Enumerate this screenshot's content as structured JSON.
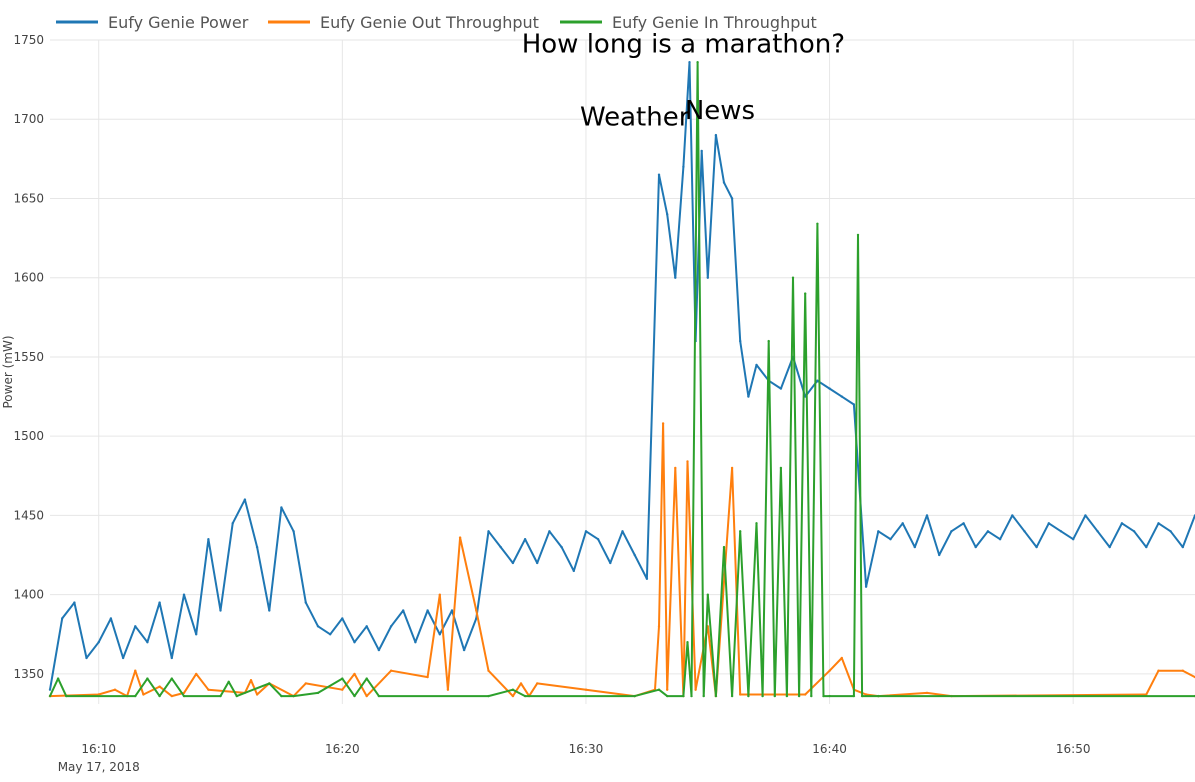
{
  "chart_data": {
    "type": "line",
    "ylabel": "Power (mW)",
    "ylim": [
      1331,
      1750
    ],
    "xlim": [
      "16:08",
      "16:55"
    ],
    "grid": true,
    "legend_position": "top-left",
    "y_ticks": [
      "1350",
      "1400",
      "1450",
      "1500",
      "1550",
      "1600",
      "1650",
      "1700",
      "1750"
    ],
    "x_ticks": [
      "16:10",
      "16:20",
      "16:30",
      "16:40",
      "16:50"
    ],
    "x_date_label": "May 17, 2018",
    "annotations": [
      {
        "text": "How long is a marathon?",
        "x": "16:34",
        "y": 1742
      },
      {
        "text": "Weather",
        "x": "16:32",
        "y": 1696
      },
      {
        "text": "News",
        "x": "16:35:30",
        "y": 1700
      }
    ],
    "series": [
      {
        "name": "Eufy Genie Power",
        "color": "#1f77b4",
        "points": [
          [
            "16:08",
            1340
          ],
          [
            "16:08:30",
            1385
          ],
          [
            "16:09",
            1395
          ],
          [
            "16:09:30",
            1360
          ],
          [
            "16:10",
            1370
          ],
          [
            "16:10:30",
            1385
          ],
          [
            "16:11",
            1360
          ],
          [
            "16:11:30",
            1380
          ],
          [
            "16:12",
            1370
          ],
          [
            "16:12:30",
            1395
          ],
          [
            "16:13",
            1360
          ],
          [
            "16:13:30",
            1400
          ],
          [
            "16:14",
            1375
          ],
          [
            "16:14:30",
            1435
          ],
          [
            "16:15",
            1390
          ],
          [
            "16:15:30",
            1445
          ],
          [
            "16:16",
            1460
          ],
          [
            "16:16:30",
            1430
          ],
          [
            "16:17",
            1390
          ],
          [
            "16:17:30",
            1455
          ],
          [
            "16:18",
            1440
          ],
          [
            "16:18:30",
            1395
          ],
          [
            "16:19",
            1380
          ],
          [
            "16:19:30",
            1375
          ],
          [
            "16:20",
            1385
          ],
          [
            "16:20:30",
            1370
          ],
          [
            "16:21",
            1380
          ],
          [
            "16:21:30",
            1365
          ],
          [
            "16:22",
            1380
          ],
          [
            "16:22:30",
            1390
          ],
          [
            "16:23",
            1370
          ],
          [
            "16:23:30",
            1390
          ],
          [
            "16:24",
            1375
          ],
          [
            "16:24:30",
            1390
          ],
          [
            "16:25",
            1365
          ],
          [
            "16:25:30",
            1385
          ],
          [
            "16:26",
            1440
          ],
          [
            "16:26:30",
            1430
          ],
          [
            "16:27",
            1420
          ],
          [
            "16:27:30",
            1435
          ],
          [
            "16:28",
            1420
          ],
          [
            "16:28:30",
            1440
          ],
          [
            "16:29",
            1430
          ],
          [
            "16:29:30",
            1415
          ],
          [
            "16:30",
            1440
          ],
          [
            "16:30:30",
            1435
          ],
          [
            "16:31",
            1420
          ],
          [
            "16:31:30",
            1440
          ],
          [
            "16:32",
            1425
          ],
          [
            "16:32:30",
            1410
          ],
          [
            "16:33",
            1665
          ],
          [
            "16:33:20",
            1640
          ],
          [
            "16:33:40",
            1600
          ],
          [
            "16:34",
            1670
          ],
          [
            "16:34:15",
            1736
          ],
          [
            "16:34:30",
            1560
          ],
          [
            "16:34:45",
            1680
          ],
          [
            "16:35",
            1600
          ],
          [
            "16:35:20",
            1690
          ],
          [
            "16:35:40",
            1660
          ],
          [
            "16:36",
            1650
          ],
          [
            "16:36:20",
            1560
          ],
          [
            "16:36:40",
            1525
          ],
          [
            "16:37",
            1545
          ],
          [
            "16:37:30",
            1535
          ],
          [
            "16:38",
            1530
          ],
          [
            "16:38:30",
            1550
          ],
          [
            "16:39",
            1525
          ],
          [
            "16:39:30",
            1535
          ],
          [
            "16:40",
            1530
          ],
          [
            "16:40:30",
            1525
          ],
          [
            "16:41",
            1520
          ],
          [
            "16:41:30",
            1405
          ],
          [
            "16:42",
            1440
          ],
          [
            "16:42:30",
            1435
          ],
          [
            "16:43",
            1445
          ],
          [
            "16:43:30",
            1430
          ],
          [
            "16:44",
            1450
          ],
          [
            "16:44:30",
            1425
          ],
          [
            "16:45",
            1440
          ],
          [
            "16:45:30",
            1445
          ],
          [
            "16:46",
            1430
          ],
          [
            "16:46:30",
            1440
          ],
          [
            "16:47",
            1435
          ],
          [
            "16:47:30",
            1450
          ],
          [
            "16:48",
            1440
          ],
          [
            "16:48:30",
            1430
          ],
          [
            "16:49",
            1445
          ],
          [
            "16:49:30",
            1440
          ],
          [
            "16:50",
            1435
          ],
          [
            "16:50:30",
            1450
          ],
          [
            "16:51",
            1440
          ],
          [
            "16:51:30",
            1430
          ],
          [
            "16:52",
            1445
          ],
          [
            "16:52:30",
            1440
          ],
          [
            "16:53",
            1430
          ],
          [
            "16:53:30",
            1445
          ],
          [
            "16:54",
            1440
          ],
          [
            "16:54:30",
            1430
          ],
          [
            "16:55",
            1450
          ]
        ]
      },
      {
        "name": "Eufy Genie Out Throughput",
        "color": "#ff7f0e",
        "points": [
          [
            "16:08",
            1336
          ],
          [
            "16:10",
            1337
          ],
          [
            "16:10:40",
            1340
          ],
          [
            "16:11:10",
            1336
          ],
          [
            "16:11:30",
            1352
          ],
          [
            "16:11:50",
            1337
          ],
          [
            "16:12:30",
            1342
          ],
          [
            "16:13",
            1336
          ],
          [
            "16:13:30",
            1338
          ],
          [
            "16:14",
            1350
          ],
          [
            "16:14:30",
            1340
          ],
          [
            "16:16",
            1338
          ],
          [
            "16:16:15",
            1346
          ],
          [
            "16:16:30",
            1337
          ],
          [
            "16:17",
            1344
          ],
          [
            "16:18",
            1336
          ],
          [
            "16:18:30",
            1344
          ],
          [
            "16:20",
            1340
          ],
          [
            "16:20:30",
            1350
          ],
          [
            "16:21",
            1336
          ],
          [
            "16:22",
            1352
          ],
          [
            "16:23:30",
            1348
          ],
          [
            "16:24",
            1400
          ],
          [
            "16:24:20",
            1340
          ],
          [
            "16:24:50",
            1436
          ],
          [
            "16:25:30",
            1390
          ],
          [
            "16:26",
            1352
          ],
          [
            "16:27",
            1336
          ],
          [
            "16:27:20",
            1344
          ],
          [
            "16:27:40",
            1336
          ],
          [
            "16:28",
            1344
          ],
          [
            "16:30",
            1340
          ],
          [
            "16:32",
            1336
          ],
          [
            "16:32:50",
            1340
          ],
          [
            "16:33",
            1380
          ],
          [
            "16:33:10",
            1508
          ],
          [
            "16:33:20",
            1340
          ],
          [
            "16:33:40",
            1480
          ],
          [
            "16:34",
            1336
          ],
          [
            "16:34:10",
            1484
          ],
          [
            "16:34:30",
            1340
          ],
          [
            "16:35",
            1380
          ],
          [
            "16:35:20",
            1336
          ],
          [
            "16:36",
            1480
          ],
          [
            "16:36:20",
            1337
          ],
          [
            "16:39",
            1337
          ],
          [
            "16:40",
            1352
          ],
          [
            "16:40:30",
            1360
          ],
          [
            "16:41",
            1340
          ],
          [
            "16:41:30",
            1337
          ],
          [
            "16:42",
            1336
          ],
          [
            "16:44",
            1338
          ],
          [
            "16:45",
            1336
          ],
          [
            "16:53",
            1337
          ],
          [
            "16:53:30",
            1352
          ],
          [
            "16:54:30",
            1352
          ],
          [
            "16:55",
            1348
          ]
        ]
      },
      {
        "name": "Eufy Genie In Throughput",
        "color": "#2ca02c",
        "points": [
          [
            "16:08",
            1336
          ],
          [
            "16:08:20",
            1347
          ],
          [
            "16:08:40",
            1336
          ],
          [
            "16:11:30",
            1336
          ],
          [
            "16:12",
            1347
          ],
          [
            "16:12:30",
            1336
          ],
          [
            "16:13",
            1347
          ],
          [
            "16:13:30",
            1336
          ],
          [
            "16:15",
            1336
          ],
          [
            "16:15:20",
            1345
          ],
          [
            "16:15:40",
            1336
          ],
          [
            "16:17",
            1344
          ],
          [
            "16:17:30",
            1336
          ],
          [
            "16:18",
            1336
          ],
          [
            "16:19",
            1338
          ],
          [
            "16:20",
            1347
          ],
          [
            "16:20:30",
            1336
          ],
          [
            "16:21",
            1347
          ],
          [
            "16:21:30",
            1336
          ],
          [
            "16:26",
            1336
          ],
          [
            "16:27",
            1340
          ],
          [
            "16:27:30",
            1336
          ],
          [
            "16:32",
            1336
          ],
          [
            "16:33",
            1340
          ],
          [
            "16:33:20",
            1336
          ],
          [
            "16:34",
            1336
          ],
          [
            "16:34:10",
            1370
          ],
          [
            "16:34:20",
            1336
          ],
          [
            "16:34:35",
            1736
          ],
          [
            "16:34:50",
            1336
          ],
          [
            "16:35",
            1400
          ],
          [
            "16:35:20",
            1336
          ],
          [
            "16:35:40",
            1430
          ],
          [
            "16:36",
            1336
          ],
          [
            "16:36:20",
            1440
          ],
          [
            "16:36:40",
            1336
          ],
          [
            "16:37",
            1445
          ],
          [
            "16:37:15",
            1336
          ],
          [
            "16:37:30",
            1560
          ],
          [
            "16:37:45",
            1336
          ],
          [
            "16:38",
            1480
          ],
          [
            "16:38:15",
            1336
          ],
          [
            "16:38:30",
            1600
          ],
          [
            "16:38:45",
            1336
          ],
          [
            "16:39",
            1590
          ],
          [
            "16:39:15",
            1336
          ],
          [
            "16:39:30",
            1634
          ],
          [
            "16:39:45",
            1336
          ],
          [
            "16:40",
            1336
          ],
          [
            "16:41",
            1336
          ],
          [
            "16:41:10",
            1627
          ],
          [
            "16:41:20",
            1336
          ],
          [
            "16:42",
            1336
          ],
          [
            "16:55",
            1336
          ]
        ]
      }
    ]
  }
}
